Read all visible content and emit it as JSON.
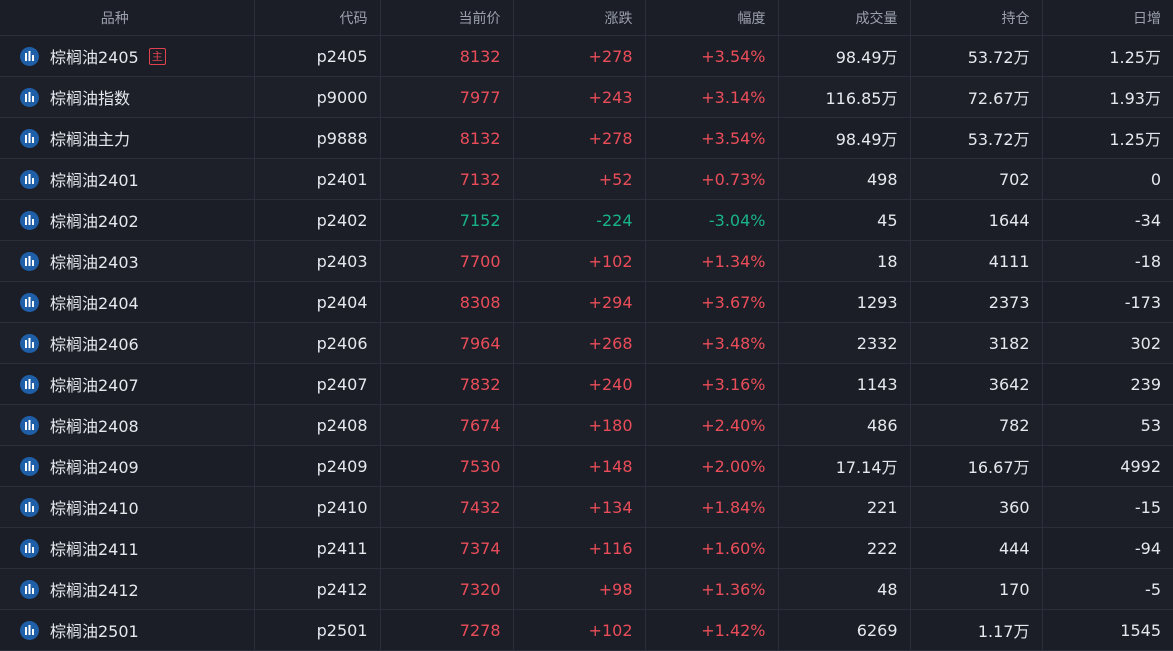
{
  "columns": [
    "品种",
    "代码",
    "当前价",
    "涨跌",
    "幅度",
    "成交量",
    "持仓",
    "日增"
  ],
  "colors": {
    "up": "#ea4d59",
    "down": "#19b38a",
    "icon_bg": "#1f5fa8",
    "badge": "#e0434f"
  },
  "rows": [
    {
      "name": "棕榈油2405",
      "badge": "主",
      "code": "p2405",
      "price": "8132",
      "change": "+278",
      "pct": "+3.54%",
      "volume": "98.49万",
      "oi": "53.72万",
      "daily": "1.25万",
      "trend": "up"
    },
    {
      "name": "棕榈油指数",
      "badge": "",
      "code": "p9000",
      "price": "7977",
      "change": "+243",
      "pct": "+3.14%",
      "volume": "116.85万",
      "oi": "72.67万",
      "daily": "1.93万",
      "trend": "up"
    },
    {
      "name": "棕榈油主力",
      "badge": "",
      "code": "p9888",
      "price": "8132",
      "change": "+278",
      "pct": "+3.54%",
      "volume": "98.49万",
      "oi": "53.72万",
      "daily": "1.25万",
      "trend": "up"
    },
    {
      "name": "棕榈油2401",
      "badge": "",
      "code": "p2401",
      "price": "7132",
      "change": "+52",
      "pct": "+0.73%",
      "volume": "498",
      "oi": "702",
      "daily": "0",
      "trend": "up"
    },
    {
      "name": "棕榈油2402",
      "badge": "",
      "code": "p2402",
      "price": "7152",
      "change": "-224",
      "pct": "-3.04%",
      "volume": "45",
      "oi": "1644",
      "daily": "-34",
      "trend": "down"
    },
    {
      "name": "棕榈油2403",
      "badge": "",
      "code": "p2403",
      "price": "7700",
      "change": "+102",
      "pct": "+1.34%",
      "volume": "18",
      "oi": "4111",
      "daily": "-18",
      "trend": "up"
    },
    {
      "name": "棕榈油2404",
      "badge": "",
      "code": "p2404",
      "price": "8308",
      "change": "+294",
      "pct": "+3.67%",
      "volume": "1293",
      "oi": "2373",
      "daily": "-173",
      "trend": "up"
    },
    {
      "name": "棕榈油2406",
      "badge": "",
      "code": "p2406",
      "price": "7964",
      "change": "+268",
      "pct": "+3.48%",
      "volume": "2332",
      "oi": "3182",
      "daily": "302",
      "trend": "up"
    },
    {
      "name": "棕榈油2407",
      "badge": "",
      "code": "p2407",
      "price": "7832",
      "change": "+240",
      "pct": "+3.16%",
      "volume": "1143",
      "oi": "3642",
      "daily": "239",
      "trend": "up"
    },
    {
      "name": "棕榈油2408",
      "badge": "",
      "code": "p2408",
      "price": "7674",
      "change": "+180",
      "pct": "+2.40%",
      "volume": "486",
      "oi": "782",
      "daily": "53",
      "trend": "up"
    },
    {
      "name": "棕榈油2409",
      "badge": "",
      "code": "p2409",
      "price": "7530",
      "change": "+148",
      "pct": "+2.00%",
      "volume": "17.14万",
      "oi": "16.67万",
      "daily": "4992",
      "trend": "up"
    },
    {
      "name": "棕榈油2410",
      "badge": "",
      "code": "p2410",
      "price": "7432",
      "change": "+134",
      "pct": "+1.84%",
      "volume": "221",
      "oi": "360",
      "daily": "-15",
      "trend": "up"
    },
    {
      "name": "棕榈油2411",
      "badge": "",
      "code": "p2411",
      "price": "7374",
      "change": "+116",
      "pct": "+1.60%",
      "volume": "222",
      "oi": "444",
      "daily": "-94",
      "trend": "up"
    },
    {
      "name": "棕榈油2412",
      "badge": "",
      "code": "p2412",
      "price": "7320",
      "change": "+98",
      "pct": "+1.36%",
      "volume": "48",
      "oi": "170",
      "daily": "-5",
      "trend": "up"
    },
    {
      "name": "棕榈油2501",
      "badge": "",
      "code": "p2501",
      "price": "7278",
      "change": "+102",
      "pct": "+1.42%",
      "volume": "6269",
      "oi": "1.17万",
      "daily": "1545",
      "trend": "up"
    }
  ]
}
